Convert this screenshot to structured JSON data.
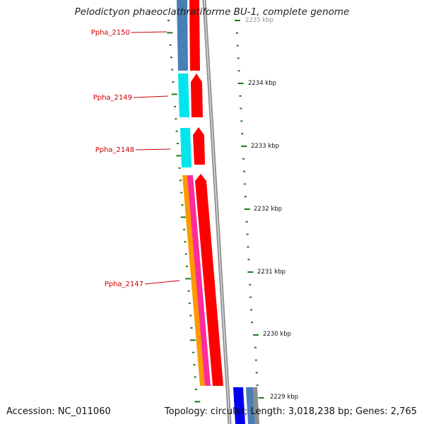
{
  "title": "Pelodictyon phaeoclathratiforme BU-1, complete genome",
  "footer": {
    "accession": "Accession: NC_011060",
    "summary": "Topology: circular; Length: 3,018,238 bp; Genes: 2,765"
  },
  "genes": [
    {
      "name": "Ppha_2150"
    },
    {
      "name": "Ppha_2149"
    },
    {
      "name": "Ppha_2148"
    },
    {
      "name": "Ppha_2147"
    }
  ],
  "scale_labels": [
    "2235 kbp",
    "2234 kbp",
    "2233 kbp",
    "2232 kbp",
    "2231 kbp",
    "2230 kbp",
    "2229 kbp"
  ],
  "colors": {
    "gene_label": "#cc0000",
    "forward_cds": "#ff0000",
    "reverse_cds_blue": "#4a7fb5",
    "reverse_cds_cyan": "#00e5ee",
    "orange_feature": "#ff9900",
    "pink_feature": "#ff2a9e",
    "backbone": "#8c8c8c",
    "tick": "#1a7a1a"
  }
}
